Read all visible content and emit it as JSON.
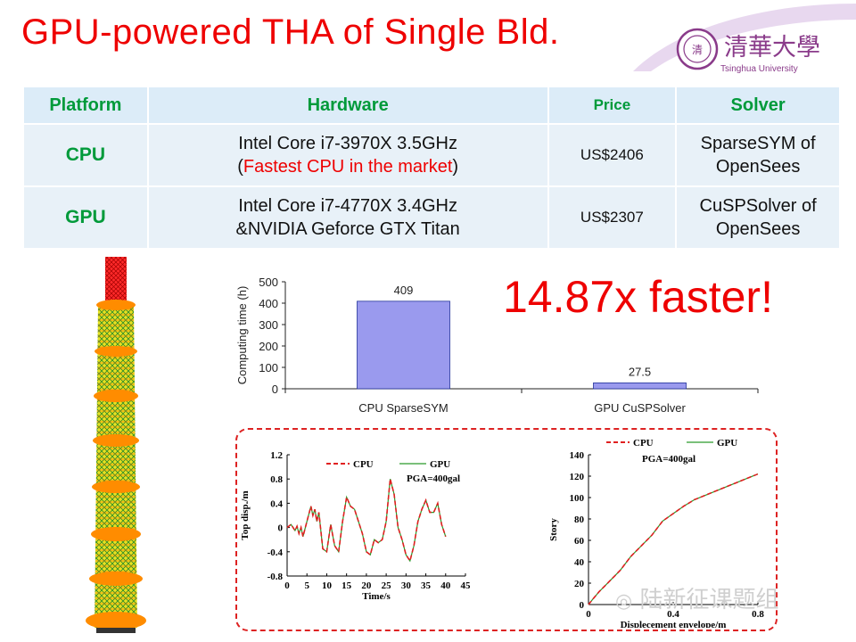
{
  "slide": {
    "title": "GPU-powered THA of Single Bld.",
    "logo_cn": "清華大學",
    "logo_en": "Tsinghua University",
    "headline": "14.87x faster!",
    "watermark": "陆新征课题组"
  },
  "table": {
    "headers": [
      "Platform",
      "Hardware",
      "Price",
      "Solver"
    ],
    "rows": [
      {
        "platform": "CPU",
        "hw1": "Intel Core i7-3970X 3.5GHz",
        "hw2_open": "(",
        "hw2_red": "Fastest CPU in the market",
        "hw2_close": ")",
        "price": "US$2406",
        "solver1": "SparseSYM of",
        "solver2": "OpenSees"
      },
      {
        "platform": "GPU",
        "hw1": "Intel Core i7-4770X 3.4GHz",
        "hw2": "&NVIDIA Geforce GTX Titan",
        "price": "US$2307",
        "solver1": "CuSPSolver of",
        "solver2": "OpenSees"
      }
    ]
  },
  "colors": {
    "title_red": "#ee0000",
    "header_green": "#009a3a",
    "bar_fill": "#9a9aee",
    "cpu_line": "#e02020",
    "gpu_line": "#2a9a2a"
  },
  "chart_data": [
    {
      "type": "bar",
      "categories": [
        "CPU SparseSYM",
        "GPU CuSPSolver"
      ],
      "values": [
        409,
        27.5
      ],
      "value_labels": [
        "409",
        "27.5"
      ],
      "ylabel": "Computing time (h)",
      "ylim": [
        0,
        500
      ],
      "yticks": [
        0,
        100,
        200,
        300,
        400,
        500
      ]
    },
    {
      "type": "line",
      "xlabel": "Time/s",
      "ylabel": "Top disp./m",
      "xlim": [
        0,
        45
      ],
      "ylim": [
        -0.8,
        1.2
      ],
      "xticks": [
        0,
        5,
        10,
        15,
        20,
        25,
        30,
        35,
        40,
        45
      ],
      "yticks": [
        "-0.8",
        "-0.4",
        "0",
        "0.4",
        "0.8",
        "1.2"
      ],
      "annotation": "PGA=400gal",
      "series_names": [
        "CPU",
        "GPU"
      ],
      "x": [
        0,
        1,
        2,
        2.5,
        3,
        3.5,
        4,
        5,
        6,
        6.5,
        7,
        7.5,
        8,
        9,
        10,
        11,
        12,
        13,
        14,
        15,
        16,
        17,
        18,
        19,
        20,
        21,
        22,
        23,
        24,
        25,
        26,
        27,
        28,
        29,
        30,
        31,
        32,
        33,
        34,
        35,
        36,
        37,
        38,
        39,
        40
      ],
      "y": [
        0,
        0.05,
        -0.05,
        0.02,
        -0.1,
        0.0,
        -0.15,
        0.1,
        0.35,
        0.2,
        0.3,
        0.1,
        0.25,
        -0.35,
        -0.4,
        0.05,
        -0.3,
        -0.4,
        0.1,
        0.5,
        0.35,
        0.3,
        0.1,
        -0.1,
        -0.4,
        -0.45,
        -0.2,
        -0.25,
        -0.2,
        0.1,
        0.8,
        0.55,
        0.0,
        -0.2,
        -0.45,
        -0.55,
        -0.3,
        0.1,
        0.3,
        0.45,
        0.25,
        0.25,
        0.4,
        0.05,
        -0.15
      ]
    },
    {
      "type": "line",
      "xlabel": "Displecement envelope/m",
      "ylabel": "Story",
      "xlim": [
        0,
        0.8
      ],
      "ylim": [
        0,
        140
      ],
      "xticks": [
        "0",
        "0.4",
        "0.8"
      ],
      "yticks": [
        0,
        20,
        40,
        60,
        80,
        100,
        120,
        140
      ],
      "annotation": "PGA=400gal",
      "series_names": [
        "CPU",
        "GPU"
      ],
      "x": [
        0,
        0.02,
        0.05,
        0.1,
        0.15,
        0.2,
        0.25,
        0.3,
        0.35,
        0.4,
        0.45,
        0.5,
        0.6,
        0.7,
        0.8
      ],
      "y": [
        0,
        5,
        12,
        22,
        32,
        45,
        55,
        65,
        78,
        85,
        92,
        98,
        106,
        114,
        122
      ]
    }
  ]
}
